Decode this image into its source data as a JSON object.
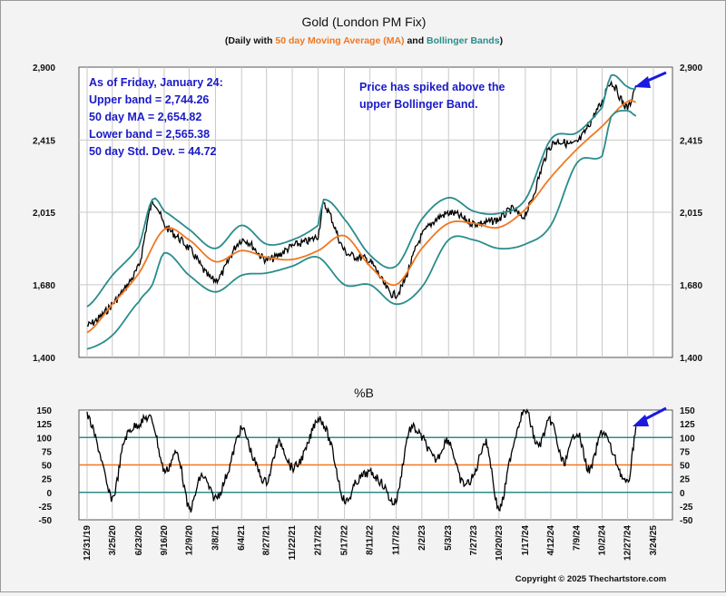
{
  "chart_data": [
    {
      "type": "line",
      "title": "Gold (London PM Fix)",
      "subtitle": {
        "prefix": "(Daily with ",
        "ma_text": "50 day Moving Average (MA)",
        "mid": " and ",
        "bb_text": "Bollinger Bands",
        "suffix": ")"
      },
      "y_ticks": [
        "2,900",
        "2,415",
        "2,015",
        "1,680",
        "1,400"
      ],
      "y_tick_values": [
        2900,
        2415,
        2015,
        1680,
        1400
      ],
      "ylim": [
        1400,
        2900
      ],
      "y_scale": "log",
      "x_tick_labels": [
        "12/31/19",
        "3/25/20",
        "6/23/20",
        "9/16/20",
        "12/9/20",
        "3/8/21",
        "6/4/21",
        "8/27/21",
        "11/22/21",
        "2/17/22",
        "5/17/22",
        "8/11/22",
        "11/7/22",
        "2/2/23",
        "5/3/23",
        "7/27/23",
        "10/20/23",
        "1/17/24",
        "4/12/24",
        "7/9/24",
        "10/2/24",
        "12/27/24",
        "3/24/25"
      ],
      "annotation_left": [
        "As of Friday, January 24:",
        "Upper band = 2,744.26",
        "50 day MA = 2,654.82",
        "Lower band = 2,565.38",
        "50 day Std. Dev. = 44.72"
      ],
      "annotation_right": [
        "Price has spiked above the",
        "upper Bollinger Band."
      ],
      "series": [
        {
          "name": "Gold (London PM Fix)",
          "color": "#000000",
          "x": [
            "12/31/19",
            "3/25/20",
            "6/23/20",
            "8/7/20",
            "9/16/20",
            "12/9/20",
            "3/8/21",
            "6/4/21",
            "8/27/21",
            "11/22/21",
            "2/17/22",
            "3/8/22",
            "5/17/22",
            "8/11/22",
            "11/7/22",
            "2/2/23",
            "5/3/23",
            "7/27/23",
            "10/20/23",
            "12/4/23",
            "1/17/24",
            "4/12/24",
            "7/9/24",
            "10/2/24",
            "10/30/24",
            "12/27/24",
            "1/24/25"
          ],
          "y": [
            1515,
            1600,
            1760,
            2060,
            1950,
            1840,
            1700,
            1880,
            1790,
            1850,
            1900,
            2050,
            1830,
            1780,
            1640,
            1900,
            2010,
            1960,
            1980,
            2030,
            2010,
            2380,
            2400,
            2650,
            2790,
            2620,
            2770
          ]
        },
        {
          "name": "50 day Moving Average (MA)",
          "color": "#f07820",
          "x": [
            "12/31/19",
            "3/25/20",
            "6/23/20",
            "9/16/20",
            "12/9/20",
            "3/8/21",
            "6/4/21",
            "8/27/21",
            "11/22/21",
            "2/17/22",
            "5/17/22",
            "8/11/22",
            "11/7/22",
            "2/2/23",
            "5/3/23",
            "7/27/23",
            "10/20/23",
            "1/17/24",
            "4/12/24",
            "7/9/24",
            "10/2/24",
            "12/27/24",
            "1/24/25"
          ],
          "y": [
            1490,
            1600,
            1730,
            1930,
            1880,
            1780,
            1830,
            1800,
            1790,
            1830,
            1900,
            1760,
            1680,
            1840,
            1960,
            1960,
            1940,
            2030,
            2200,
            2360,
            2500,
            2660,
            2655
          ]
        },
        {
          "name": "Upper Bollinger Band",
          "color": "#2a8c8c",
          "x": [
            "12/31/19",
            "3/25/20",
            "6/23/20",
            "8/7/20",
            "9/16/20",
            "12/9/20",
            "3/8/21",
            "6/4/21",
            "8/27/21",
            "11/22/21",
            "2/17/22",
            "3/8/22",
            "5/17/22",
            "8/11/22",
            "11/7/22",
            "2/2/23",
            "5/3/23",
            "7/27/23",
            "10/20/23",
            "1/17/24",
            "4/12/24",
            "7/9/24",
            "10/2/24",
            "11/1/24",
            "12/27/24",
            "1/24/25"
          ],
          "y": [
            1590,
            1720,
            1850,
            2080,
            2020,
            1930,
            1840,
            1950,
            1860,
            1880,
            1950,
            2080,
            1980,
            1810,
            1760,
            1980,
            2090,
            2020,
            2010,
            2080,
            2420,
            2460,
            2620,
            2840,
            2760,
            2744.26
          ]
        },
        {
          "name": "Lower Bollinger Band",
          "color": "#2a8c8c",
          "x": [
            "12/31/19",
            "3/25/20",
            "6/23/20",
            "8/7/20",
            "9/16/20",
            "12/9/20",
            "3/8/21",
            "6/4/21",
            "8/27/21",
            "11/22/21",
            "2/17/22",
            "5/17/22",
            "8/11/22",
            "11/7/22",
            "2/2/23",
            "5/3/23",
            "7/27/23",
            "10/20/23",
            "1/17/24",
            "4/12/24",
            "7/9/24",
            "10/2/24",
            "11/1/24",
            "12/27/24",
            "1/24/25"
          ],
          "y": [
            1430,
            1480,
            1610,
            1680,
            1820,
            1720,
            1650,
            1720,
            1730,
            1760,
            1800,
            1680,
            1680,
            1600,
            1670,
            1880,
            1880,
            1840,
            1860,
            1950,
            2280,
            2320,
            2560,
            2600,
            2565.38
          ]
        }
      ]
    },
    {
      "type": "line",
      "title": "%B",
      "y_ticks": [
        "150",
        "125",
        "100",
        "75",
        "50",
        "25",
        "0",
        "-25",
        "-50"
      ],
      "y_tick_values": [
        150,
        125,
        100,
        75,
        50,
        25,
        0,
        -25,
        -50
      ],
      "ylim": [
        -50,
        150
      ],
      "reference_lines": [
        {
          "value": 100,
          "color": "#2a8c8c"
        },
        {
          "value": 50,
          "color": "#f07820"
        },
        {
          "value": 0,
          "color": "#2a8c8c"
        }
      ],
      "series": [
        {
          "name": "%B",
          "color": "#000000",
          "x": [
            "12/31/19",
            "2/10/20",
            "3/25/20",
            "5/5/20",
            "6/23/20",
            "8/7/20",
            "9/16/20",
            "11/1/20",
            "12/9/20",
            "1/20/21",
            "3/8/21",
            "4/20/21",
            "6/4/21",
            "7/15/21",
            "8/27/21",
            "10/8/21",
            "11/22/21",
            "1/5/22",
            "2/17/22",
            "3/30/22",
            "5/17/22",
            "6/28/22",
            "8/11/22",
            "9/22/22",
            "11/7/22",
            "12/20/22",
            "2/2/23",
            "3/20/23",
            "5/3/23",
            "6/15/23",
            "7/27/23",
            "9/7/23",
            "10/20/23",
            "12/4/23",
            "1/17/24",
            "2/28/24",
            "4/12/24",
            "5/24/24",
            "7/9/24",
            "8/20/24",
            "10/2/24",
            "11/15/24",
            "12/27/24",
            "1/10/25",
            "1/24/25"
          ],
          "y": [
            140,
            75,
            -10,
            95,
            125,
            130,
            40,
            70,
            -30,
            30,
            -10,
            40,
            115,
            60,
            20,
            90,
            45,
            75,
            135,
            90,
            -15,
            20,
            35,
            15,
            -15,
            110,
            100,
            60,
            95,
            20,
            30,
            90,
            -30,
            80,
            150,
            85,
            130,
            55,
            110,
            40,
            110,
            60,
            15,
            60,
            120
          ]
        }
      ]
    }
  ],
  "copyright": "Copyright © 2025 Thechartstore.com"
}
